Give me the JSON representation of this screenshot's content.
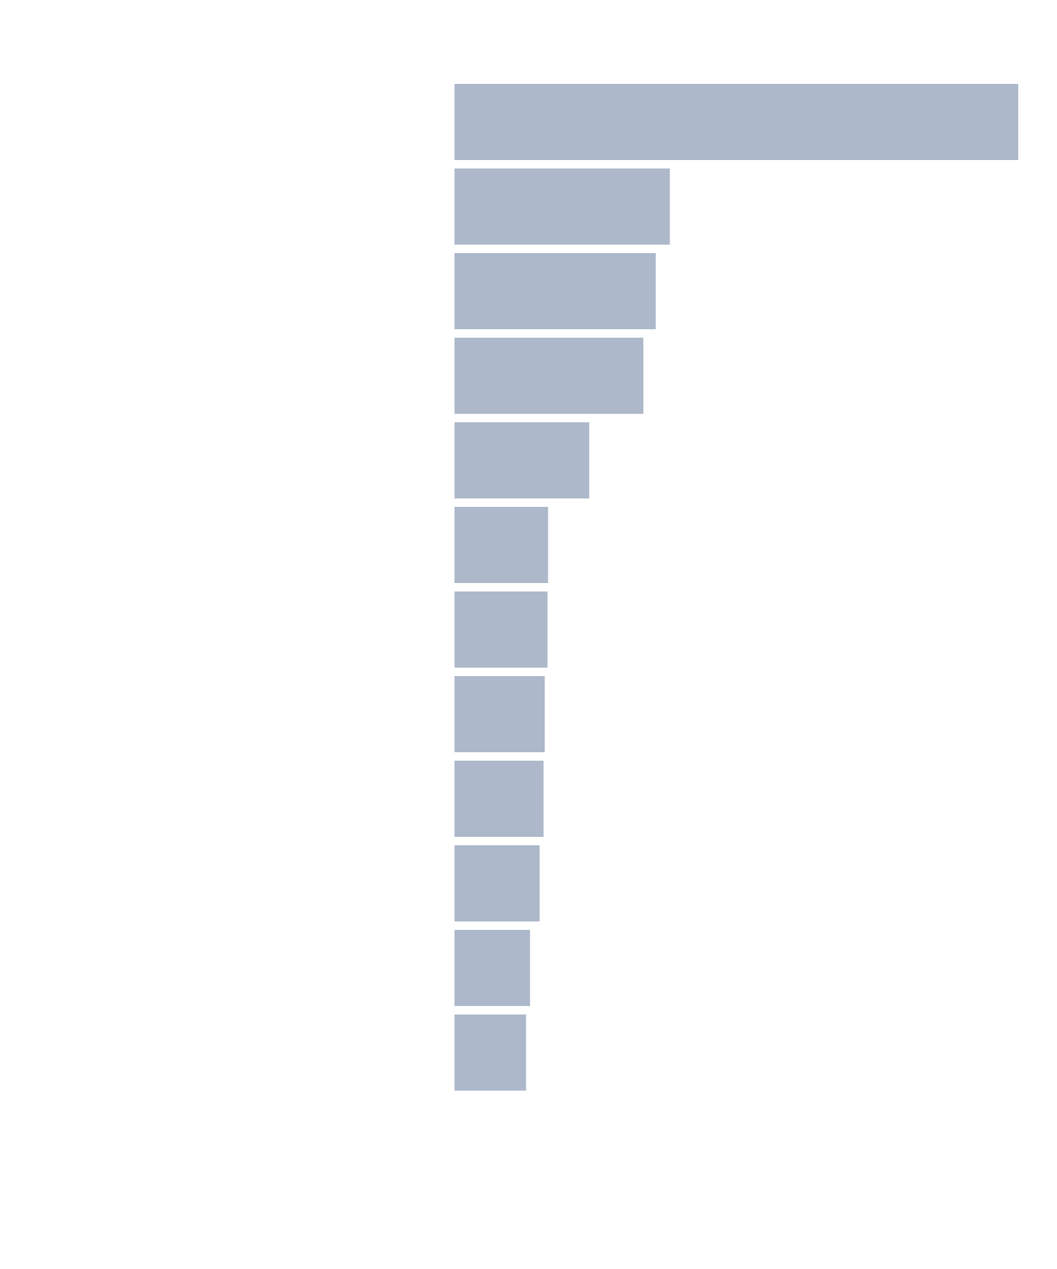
{
  "chart_data": {
    "type": "bar",
    "orientation": "horizontal",
    "title": "",
    "xlabel": "",
    "ylabel": "",
    "values": [
      100,
      38.2,
      35.7,
      33.5,
      23.9,
      16.6,
      16.5,
      16.0,
      15.8,
      15.1,
      13.4,
      12.7
    ],
    "xlim": [
      0,
      100
    ],
    "grid": false,
    "legend": "none",
    "bar_color": "#adb8ca",
    "background": "#ffffff"
  }
}
